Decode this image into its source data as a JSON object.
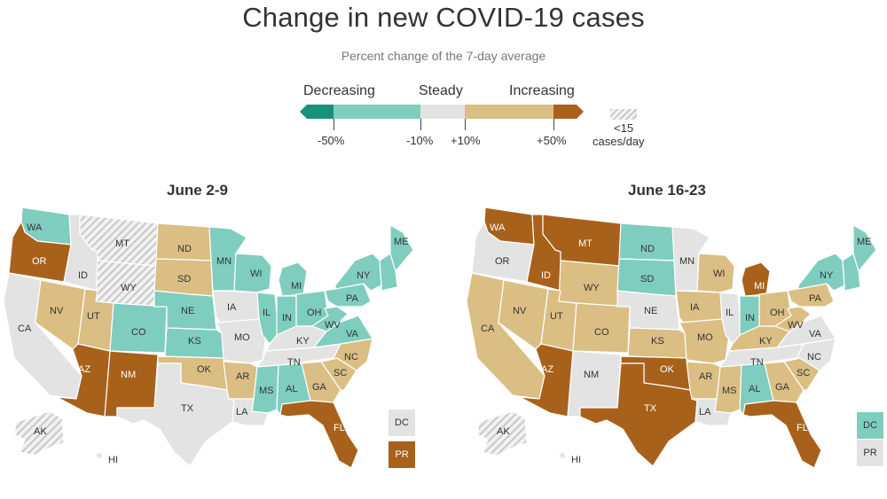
{
  "title": "Change in new COVID-19 cases",
  "subtitle": "Percent change of the 7-day average",
  "legend": {
    "decreasing": "Decreasing",
    "steady": "Steady",
    "increasing": "Increasing",
    "ticks": [
      "-50%",
      "-10%",
      "+10%",
      "+50%"
    ],
    "hatch_label_1": "<15",
    "hatch_label_2": "cases/day"
  },
  "colors": {
    "strong_dec": "#1a8f7c",
    "dec": "#7fcdbf",
    "steady": "#e3e3e3",
    "inc": "#dbbe83",
    "strong_inc": "#a8611b",
    "hatched": "hatched"
  },
  "panels": [
    {
      "title": "June 2-9",
      "states": {
        "WA": "dec",
        "OR": "strong_inc",
        "CA": "steady",
        "ID": "steady",
        "NV": "inc",
        "MT": "hatched",
        "WY": "hatched",
        "UT": "inc",
        "AZ": "strong_inc",
        "CO": "dec",
        "NM": "strong_inc",
        "ND": "inc",
        "SD": "inc",
        "NE": "dec",
        "KS": "dec",
        "OK": "inc",
        "TX": "steady",
        "MN": "dec",
        "IA": "steady",
        "MO": "steady",
        "AR": "inc",
        "LA": "steady",
        "WI": "dec",
        "IL": "dec",
        "MI": "dec",
        "IN": "dec",
        "OH": "dec",
        "KY": "steady",
        "TN": "steady",
        "MS": "dec",
        "AL": "dec",
        "GA": "inc",
        "FL": "strong_inc",
        "SC": "inc",
        "NC": "inc",
        "VA": "dec",
        "WV": "dec",
        "PA": "dec",
        "NY": "dec",
        "NE_REGION": "dec",
        "ME": "dec",
        "AK": "hatched",
        "HI": "steady",
        "DC": "steady",
        "PR": "strong_inc"
      }
    },
    {
      "title": "June 16-23",
      "states": {
        "WA": "strong_inc",
        "OR": "steady",
        "CA": "inc",
        "ID": "strong_inc",
        "NV": "inc",
        "MT": "strong_inc",
        "WY": "inc",
        "UT": "inc",
        "AZ": "strong_inc",
        "CO": "inc",
        "NM": "steady",
        "ND": "dec",
        "SD": "dec",
        "NE": "steady",
        "KS": "inc",
        "OK": "strong_inc",
        "TX": "strong_inc",
        "MN": "steady",
        "IA": "inc",
        "MO": "inc",
        "AR": "inc",
        "LA": "steady",
        "WI": "inc",
        "IL": "steady",
        "MI": "strong_inc",
        "IN": "dec",
        "OH": "inc",
        "KY": "inc",
        "TN": "steady",
        "MS": "inc",
        "AL": "dec",
        "GA": "inc",
        "FL": "strong_inc",
        "SC": "inc",
        "NC": "steady",
        "VA": "steady",
        "WV": "inc",
        "PA": "inc",
        "NY": "dec",
        "NE_REGION": "dec",
        "ME": "dec",
        "AK": "hatched",
        "HI": "steady",
        "DC": "dec",
        "PR": "steady"
      }
    }
  ],
  "labels": {
    "WA": "WA",
    "OR": "OR",
    "CA": "CA",
    "ID": "ID",
    "NV": "NV",
    "MT": "MT",
    "WY": "WY",
    "UT": "UT",
    "AZ": "AZ",
    "CO": "CO",
    "NM": "NM",
    "ND": "ND",
    "SD": "SD",
    "NE": "NE",
    "KS": "KS",
    "OK": "OK",
    "TX": "TX",
    "MN": "MN",
    "IA": "IA",
    "MO": "MO",
    "AR": "AR",
    "LA": "LA",
    "WI": "WI",
    "IL": "IL",
    "MI": "MI",
    "IN": "IN",
    "OH": "OH",
    "KY": "KY",
    "TN": "TN",
    "MS": "MS",
    "AL": "AL",
    "GA": "GA",
    "FL": "FL",
    "SC": "SC",
    "NC": "NC",
    "VA": "VA",
    "WV": "WV",
    "PA": "PA",
    "NY": "NY",
    "ME": "ME",
    "AK": "AK",
    "HI": "HI",
    "DC": "DC",
    "PR": "PR"
  }
}
